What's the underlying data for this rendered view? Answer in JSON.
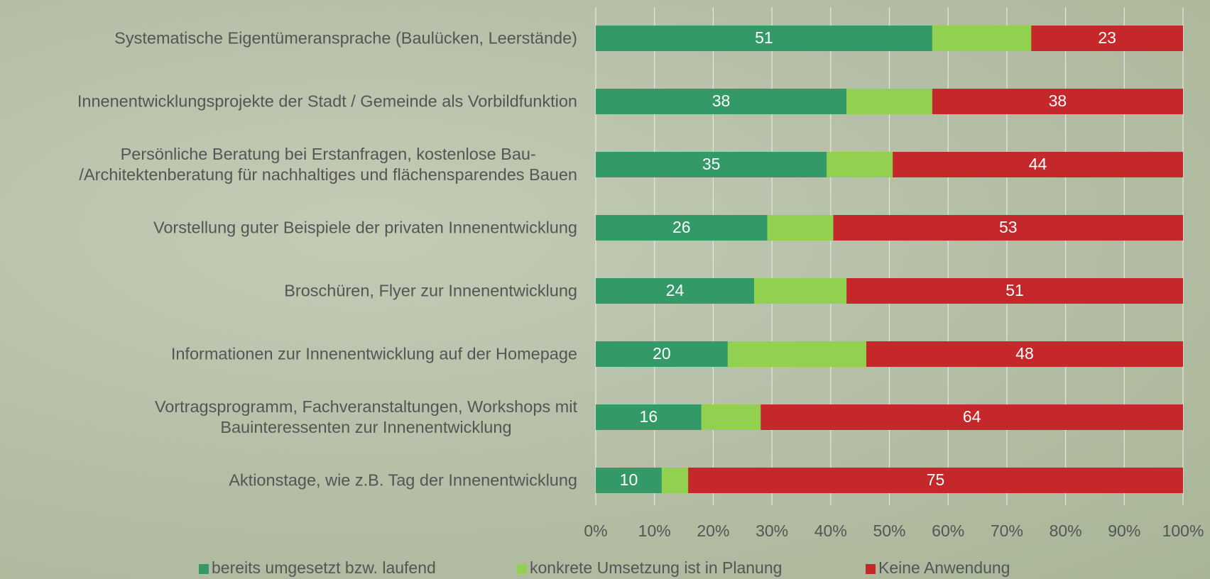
{
  "chart_data": {
    "type": "bar",
    "orientation": "horizontal",
    "stacked": "percent",
    "categories": [
      "Systematische Eigentümeransprache (Baulücken, Leerstände)",
      "Innenentwicklungsprojekte der Stadt / Gemeinde als Vorbildfunktion",
      "Persönliche Beratung bei Erstanfragen, kostenlose Bau-\n/Architektenberatung für nachhaltiges und flächensparendes Bauen",
      "Vorstellung guter Beispiele der privaten Innenentwicklung",
      "Broschüren, Flyer zur Innenentwicklung",
      "Informationen zur Innenentwicklung auf der Homepage",
      "Vortragsprogramm, Fachveranstaltungen, Workshops mit\nBauinteressenten zur Innenentwicklung",
      "Aktionstage, wie z.B. Tag der Innenentwicklung"
    ],
    "series": [
      {
        "name": "bereits umgesetzt bzw. laufend",
        "color": "#339966",
        "show_labels": true,
        "values": [
          51,
          38,
          35,
          26,
          24,
          20,
          16,
          10
        ]
      },
      {
        "name": "konkrete Umsetzung ist in Planung",
        "color": "#92d050",
        "show_labels": false,
        "values": [
          15,
          13,
          10,
          10,
          14,
          21,
          9,
          4
        ]
      },
      {
        "name": "Keine Anwendung",
        "color": "#c5282a",
        "show_labels": true,
        "values": [
          23,
          38,
          44,
          53,
          51,
          48,
          64,
          75
        ]
      }
    ],
    "xlim": [
      0,
      100
    ],
    "xticks": [
      {
        "value": 0,
        "label": "0%"
      },
      {
        "value": 10,
        "label": "10%"
      },
      {
        "value": 20,
        "label": "20%"
      },
      {
        "value": 30,
        "label": "30%"
      },
      {
        "value": 40,
        "label": "40%"
      },
      {
        "value": 50,
        "label": "50%"
      },
      {
        "value": 60,
        "label": "60%"
      },
      {
        "value": 70,
        "label": "70%"
      },
      {
        "value": 80,
        "label": "80%"
      },
      {
        "value": 90,
        "label": "90%"
      },
      {
        "value": 100,
        "label": "100%"
      }
    ],
    "grid": true,
    "legend": "bottom"
  }
}
